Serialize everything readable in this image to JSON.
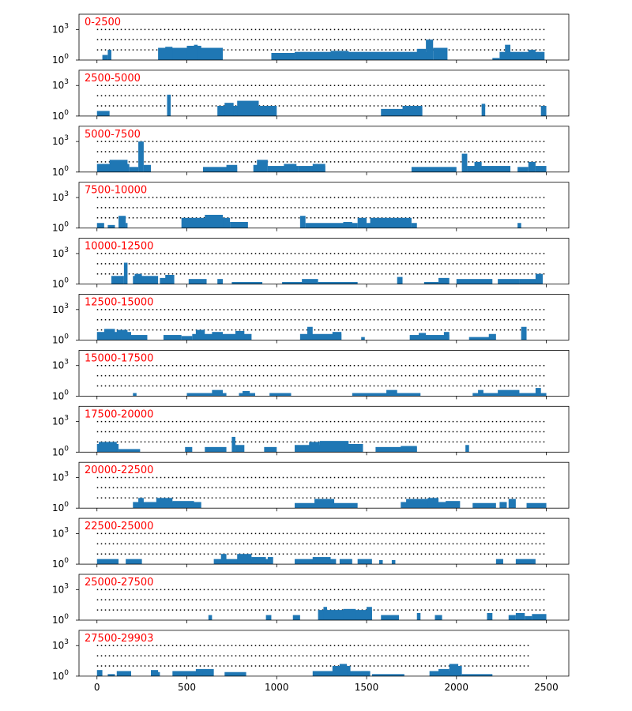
{
  "chart_data": {
    "type": "bar",
    "description_scale": "log",
    "x": {
      "ticks": [
        0,
        500,
        1000,
        1500,
        2000,
        2500
      ],
      "tick_labels": [
        "0",
        "500",
        "1000",
        "1500",
        "2000",
        "2500"
      ],
      "xlim": [
        -100,
        2625
      ]
    },
    "y": {
      "scale": "log",
      "ylim_log10": [
        0,
        4.5
      ],
      "tick_labels": [
        {
          "base": "10",
          "exp": "0",
          "value": 1
        },
        {
          "base": "10",
          "exp": "3",
          "value": 1000
        }
      ],
      "reference_lines_log10": [
        1,
        2,
        3
      ]
    },
    "reference_line_range": [
      0,
      2500
    ],
    "panels": [
      {
        "label": "0-2500",
        "dotted_end": 2500,
        "bars": [
          [
            30,
            60,
            0.5
          ],
          [
            60,
            80,
            1.0
          ],
          [
            340,
            700,
            1.2
          ],
          [
            380,
            420,
            1.3
          ],
          [
            500,
            580,
            1.4
          ],
          [
            540,
            560,
            1.5
          ],
          [
            970,
            1100,
            0.7
          ],
          [
            1100,
            1850,
            0.8
          ],
          [
            1300,
            1400,
            0.9
          ],
          [
            1470,
            1600,
            0.7
          ],
          [
            1780,
            1830,
            1.1
          ],
          [
            1830,
            1870,
            2.0
          ],
          [
            1870,
            1950,
            1.2
          ],
          [
            1900,
            1940,
            0.8
          ],
          [
            2200,
            2240,
            0.2
          ],
          [
            2240,
            2490,
            0.8
          ],
          [
            2270,
            2300,
            1.5
          ],
          [
            2400,
            2440,
            1.0
          ]
        ]
      },
      {
        "label": "2500-5000",
        "dotted_end": 2500,
        "bars": [
          [
            0,
            70,
            0.5
          ],
          [
            390,
            410,
            2.1
          ],
          [
            670,
            1000,
            1.0
          ],
          [
            710,
            760,
            1.3
          ],
          [
            780,
            900,
            1.5
          ],
          [
            1580,
            1810,
            0.7
          ],
          [
            1700,
            1810,
            1.0
          ],
          [
            2140,
            2160,
            1.2
          ],
          [
            2470,
            2500,
            1.0
          ]
        ]
      },
      {
        "label": "5000-7500",
        "dotted_end": 2500,
        "bars": [
          [
            0,
            180,
            0.8
          ],
          [
            70,
            170,
            1.2
          ],
          [
            180,
            230,
            0.5
          ],
          [
            230,
            260,
            3.0
          ],
          [
            260,
            300,
            0.7
          ],
          [
            590,
            780,
            0.5
          ],
          [
            720,
            780,
            0.7
          ],
          [
            870,
            910,
            0.7
          ],
          [
            890,
            950,
            1.2
          ],
          [
            950,
            1120,
            0.6
          ],
          [
            1040,
            1110,
            0.8
          ],
          [
            1120,
            1270,
            0.6
          ],
          [
            1200,
            1270,
            0.8
          ],
          [
            1750,
            2000,
            0.5
          ],
          [
            2030,
            2060,
            1.8
          ],
          [
            2060,
            2300,
            0.6
          ],
          [
            2100,
            2140,
            1.0
          ],
          [
            2340,
            2400,
            0.5
          ],
          [
            2400,
            2440,
            1.0
          ],
          [
            2440,
            2500,
            0.6
          ]
        ]
      },
      {
        "label": "7500-10000",
        "dotted_end": 2500,
        "bars": [
          [
            0,
            40,
            0.5
          ],
          [
            60,
            100,
            0.3
          ],
          [
            120,
            160,
            1.2
          ],
          [
            160,
            170,
            0.5
          ],
          [
            470,
            740,
            1.0
          ],
          [
            600,
            700,
            1.3
          ],
          [
            740,
            840,
            0.6
          ],
          [
            1130,
            1160,
            1.2
          ],
          [
            1160,
            1450,
            0.5
          ],
          [
            1370,
            1420,
            0.6
          ],
          [
            1450,
            1500,
            1.0
          ],
          [
            1500,
            1560,
            0.5
          ],
          [
            1520,
            1750,
            1.0
          ],
          [
            1750,
            1780,
            0.5
          ],
          [
            2340,
            2360,
            0.5
          ]
        ]
      },
      {
        "label": "10000-12500",
        "dotted_end": 2500,
        "bars": [
          [
            80,
            150,
            0.8
          ],
          [
            150,
            170,
            2.1
          ],
          [
            200,
            340,
            0.8
          ],
          [
            210,
            250,
            1.0
          ],
          [
            350,
            420,
            0.6
          ],
          [
            380,
            430,
            0.9
          ],
          [
            510,
            610,
            0.5
          ],
          [
            670,
            700,
            0.5
          ],
          [
            750,
            920,
            0.2
          ],
          [
            1030,
            1150,
            0.2
          ],
          [
            1140,
            1230,
            0.5
          ],
          [
            1230,
            1450,
            0.2
          ],
          [
            1670,
            1700,
            0.7
          ],
          [
            1820,
            1900,
            0.2
          ],
          [
            1900,
            1960,
            0.6
          ],
          [
            2000,
            2200,
            0.5
          ],
          [
            2230,
            2350,
            0.5
          ],
          [
            2350,
            2450,
            0.5
          ],
          [
            2440,
            2480,
            1.0
          ]
        ]
      },
      {
        "label": "12500-15000",
        "dotted_end": 2500,
        "bars": [
          [
            0,
            190,
            0.8
          ],
          [
            40,
            100,
            1.1
          ],
          [
            110,
            170,
            1.0
          ],
          [
            190,
            280,
            0.5
          ],
          [
            370,
            470,
            0.5
          ],
          [
            470,
            530,
            0.4
          ],
          [
            530,
            860,
            0.6
          ],
          [
            550,
            600,
            1.0
          ],
          [
            640,
            700,
            0.8
          ],
          [
            770,
            820,
            0.9
          ],
          [
            1130,
            1360,
            0.6
          ],
          [
            1170,
            1200,
            1.3
          ],
          [
            1310,
            1360,
            0.8
          ],
          [
            1470,
            1490,
            0.3
          ],
          [
            1740,
            1960,
            0.5
          ],
          [
            1790,
            1830,
            0.7
          ],
          [
            1930,
            1960,
            0.8
          ],
          [
            2070,
            2200,
            0.3
          ],
          [
            2180,
            2220,
            0.6
          ],
          [
            2360,
            2390,
            1.3
          ]
        ]
      },
      {
        "label": "15000-17500",
        "dotted_end": 2500,
        "bars": [
          [
            200,
            220,
            0.3
          ],
          [
            500,
            720,
            0.3
          ],
          [
            640,
            700,
            0.6
          ],
          [
            790,
            880,
            0.3
          ],
          [
            810,
            850,
            0.5
          ],
          [
            960,
            1080,
            0.3
          ],
          [
            1420,
            1800,
            0.3
          ],
          [
            1610,
            1670,
            0.6
          ],
          [
            2090,
            2500,
            0.3
          ],
          [
            2120,
            2150,
            0.6
          ],
          [
            2230,
            2350,
            0.6
          ],
          [
            2440,
            2470,
            0.8
          ]
        ]
      },
      {
        "label": "17500-20000",
        "dotted_end": 2500,
        "bars": [
          [
            0,
            120,
            0.8
          ],
          [
            10,
            110,
            1.0
          ],
          [
            120,
            240,
            0.3
          ],
          [
            490,
            530,
            0.5
          ],
          [
            600,
            720,
            0.5
          ],
          [
            750,
            770,
            1.5
          ],
          [
            770,
            820,
            0.7
          ],
          [
            930,
            1000,
            0.5
          ],
          [
            1100,
            1380,
            0.7
          ],
          [
            1180,
            1240,
            1.0
          ],
          [
            1240,
            1400,
            1.1
          ],
          [
            1380,
            1480,
            0.8
          ],
          [
            1430,
            1470,
            0.8
          ],
          [
            1550,
            1780,
            0.5
          ],
          [
            1690,
            1780,
            0.6
          ],
          [
            2050,
            2070,
            0.7
          ]
        ]
      },
      {
        "label": "20000-22500",
        "dotted_end": 2500,
        "bars": [
          [
            200,
            580,
            0.6
          ],
          [
            230,
            260,
            1.0
          ],
          [
            330,
            420,
            1.0
          ],
          [
            420,
            540,
            0.7
          ],
          [
            1100,
            1450,
            0.5
          ],
          [
            1210,
            1320,
            0.9
          ],
          [
            1690,
            2000,
            0.6
          ],
          [
            1720,
            1860,
            0.9
          ],
          [
            1840,
            1900,
            1.0
          ],
          [
            1940,
            2020,
            0.7
          ],
          [
            2090,
            2220,
            0.5
          ],
          [
            2240,
            2280,
            0.6
          ],
          [
            2290,
            2330,
            0.9
          ],
          [
            2390,
            2500,
            0.5
          ]
        ]
      },
      {
        "label": "22500-25000",
        "dotted_end": 2500,
        "bars": [
          [
            0,
            120,
            0.5
          ],
          [
            160,
            250,
            0.5
          ],
          [
            650,
            960,
            0.5
          ],
          [
            690,
            720,
            1.0
          ],
          [
            780,
            860,
            1.0
          ],
          [
            860,
            940,
            0.7
          ],
          [
            950,
            980,
            0.7
          ],
          [
            1100,
            1330,
            0.5
          ],
          [
            1200,
            1300,
            0.7
          ],
          [
            1350,
            1420,
            0.5
          ],
          [
            1450,
            1530,
            0.5
          ],
          [
            1570,
            1590,
            0.4
          ],
          [
            1640,
            1660,
            0.4
          ],
          [
            2220,
            2260,
            0.5
          ],
          [
            2330,
            2440,
            0.5
          ]
        ]
      },
      {
        "label": "25000-27500",
        "dotted_end": 2500,
        "bars": [
          [
            620,
            640,
            0.5
          ],
          [
            940,
            970,
            0.5
          ],
          [
            1090,
            1130,
            0.5
          ],
          [
            1230,
            1530,
            1.0
          ],
          [
            1260,
            1280,
            1.3
          ],
          [
            1370,
            1440,
            1.1
          ],
          [
            1420,
            1440,
            0.8
          ],
          [
            1500,
            1530,
            1.3
          ],
          [
            1580,
            1680,
            0.5
          ],
          [
            1780,
            1800,
            0.7
          ],
          [
            1880,
            1920,
            0.5
          ],
          [
            2170,
            2200,
            0.7
          ],
          [
            2290,
            2330,
            0.5
          ],
          [
            2330,
            2380,
            0.7
          ],
          [
            2380,
            2420,
            0.4
          ],
          [
            2420,
            2500,
            0.6
          ]
        ]
      },
      {
        "label": "27500-29903",
        "dotted_end": 2403,
        "bars": [
          [
            0,
            30,
            0.6
          ],
          [
            60,
            100,
            0.2
          ],
          [
            110,
            190,
            0.5
          ],
          [
            300,
            340,
            0.6
          ],
          [
            310,
            350,
            0.4
          ],
          [
            420,
            610,
            0.5
          ],
          [
            550,
            590,
            0.7
          ],
          [
            590,
            650,
            0.7
          ],
          [
            710,
            830,
            0.4
          ],
          [
            1200,
            1520,
            0.5
          ],
          [
            1310,
            1410,
            1.0
          ],
          [
            1350,
            1390,
            1.2
          ],
          [
            1470,
            1510,
            0.5
          ],
          [
            1850,
            1990,
            0.5
          ],
          [
            1900,
            1960,
            0.7
          ],
          [
            1960,
            2010,
            1.2
          ],
          [
            2000,
            2030,
            1.0
          ],
          [
            2030,
            2200,
            0.2
          ],
          [
            1530,
            1710,
            0.2
          ]
        ]
      }
    ]
  }
}
